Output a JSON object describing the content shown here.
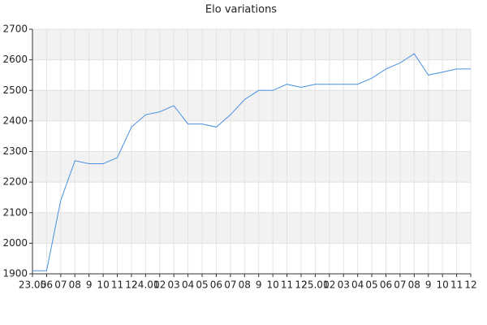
{
  "chart_data": {
    "type": "line",
    "title": "Elo variations",
    "categories": [
      "23.05",
      "06",
      "07",
      "08",
      "9",
      "10",
      "11",
      "12",
      "24.01",
      "02",
      "03",
      "04",
      "05",
      "06",
      "07",
      "08",
      "9",
      "10",
      "11",
      "12",
      "25.01",
      "02",
      "03",
      "04",
      "05",
      "06",
      "07",
      "08",
      "9",
      "10",
      "11",
      "12"
    ],
    "values": [
      1910,
      1910,
      2140,
      2270,
      2260,
      2260,
      2280,
      2380,
      2420,
      2430,
      2450,
      2390,
      2390,
      2380,
      2420,
      2470,
      2500,
      2500,
      2520,
      2510,
      2520,
      2520,
      2520,
      2520,
      2540,
      2570,
      2590,
      2620,
      2550,
      2560,
      2570,
      2570
    ],
    "color": "#4a90e2",
    "ylim": [
      1900,
      2700
    ],
    "yticks": [
      1900,
      2000,
      2100,
      2200,
      2300,
      2400,
      2500,
      2600,
      2700
    ],
    "grid": true
  }
}
